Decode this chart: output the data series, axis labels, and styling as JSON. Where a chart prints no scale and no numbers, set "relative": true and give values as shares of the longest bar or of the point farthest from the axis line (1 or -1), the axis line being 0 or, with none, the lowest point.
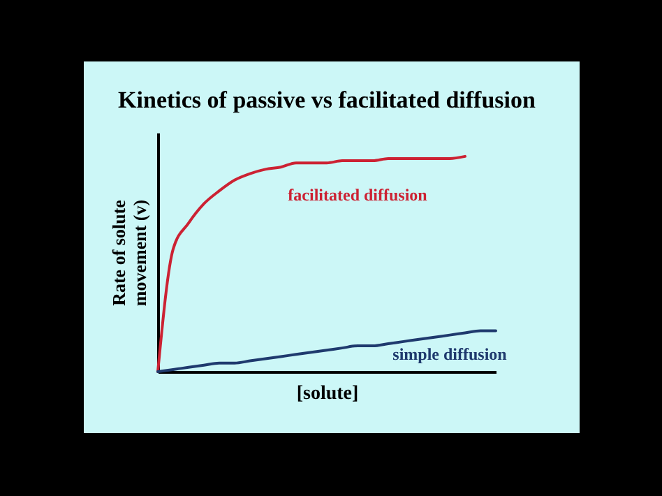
{
  "chart_data": {
    "type": "line",
    "title": "Kinetics of passive vs facilitated diffusion",
    "xlabel": "[solute]",
    "ylabel": "Rate of solute movement (v)",
    "relative": true,
    "marker": "none",
    "line_style": "solid",
    "categories": [
      null,
      null,
      null,
      null,
      null,
      null,
      null,
      null,
      null,
      null,
      null,
      null,
      null,
      null,
      null,
      null,
      null,
      null,
      null,
      null,
      null,
      null,
      null
    ],
    "series": [
      {
        "name": "facilitated diffusion",
        "color": "#cc2233",
        "values": [
          0,
          0.57,
          0.69,
          0.78,
          0.84,
          0.89,
          0.92,
          0.94,
          0.95,
          0.97,
          0.97,
          0.97,
          0.98,
          0.98,
          0.98,
          0.99,
          0.99,
          0.99,
          0.99,
          0.99,
          1,
          null,
          null
        ]
      },
      {
        "name": "simple diffusion",
        "color": "#1f3a6e",
        "values": [
          0,
          0.01,
          0.02,
          0.03,
          0.04,
          0.04,
          0.05,
          0.06,
          0.07,
          0.08,
          0.09,
          0.1,
          0.11,
          0.12,
          0.12,
          0.13,
          0.14,
          0.15,
          0.16,
          0.17,
          0.18,
          0.19,
          0.19
        ]
      }
    ]
  }
}
